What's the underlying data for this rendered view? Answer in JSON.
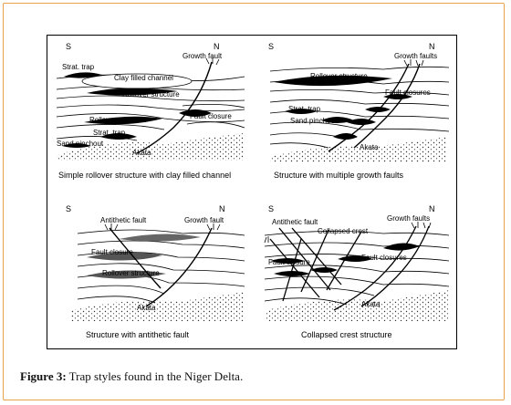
{
  "panels": [
    {
      "caption": "Simple rollover structure with clay filled channel",
      "south": "S",
      "north": "N",
      "labels": {
        "growth_fault": "Growth fault",
        "strat_trap_top": "Strat. trap",
        "clay_channel": "Clay filled channel",
        "rollover_top": "Rollover structure",
        "fault_closure": "Fault closure",
        "rollover_mid": "Rollover structure",
        "strat_trap_low": "Strat. trap",
        "sand_pinchout": "Sand pinchout",
        "akata": "Akata"
      }
    },
    {
      "caption": "Structure with multiple growth faults",
      "south": "S",
      "north": "N",
      "labels": {
        "growth_faults": "Growth faults",
        "rollover": "Rollover structure",
        "fault_closures": "Fault closures",
        "strat_trap": "Strat. trap",
        "sand_pinchout": "Sand pinchout",
        "akata": "Akata"
      }
    },
    {
      "caption": "Structure with antithetic fault",
      "south": "S",
      "north": "N",
      "labels": {
        "antithetic": "Antithetic fault",
        "growth_fault": "Growth fault",
        "fault_closure": "Fault closure",
        "rollover": "Rollover structure",
        "akata": "Akata"
      }
    },
    {
      "caption": "Collapsed crest structure",
      "south": "S",
      "north": "N",
      "labels": {
        "antithetic": "Antithetic fault",
        "collapsed_crest": "Collapsed crest",
        "growth_faults": "Growth faults",
        "fault_closure": "Fault closure",
        "fault_closures": "Fault closures",
        "akata": "Akata"
      }
    }
  ],
  "figure": {
    "label": "Figure 3:",
    "text": " Trap styles found in the Niger Delta."
  }
}
